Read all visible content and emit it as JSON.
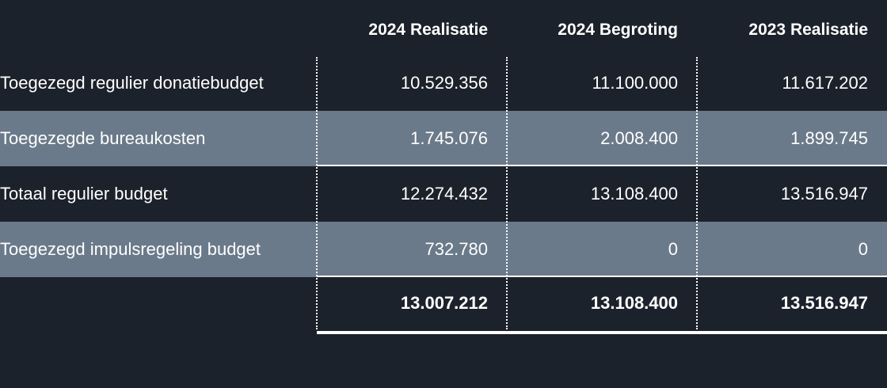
{
  "columns": [
    "2024 Realisatie",
    "2024 Begroting",
    "2023 Realisatie"
  ],
  "rows": [
    {
      "label": "Toegezegd regulier donatiebudget",
      "values": [
        "10.529.356",
        "11.100.000",
        "11.617.202"
      ]
    },
    {
      "label": "Toegezegde bureaukosten",
      "values": [
        "1.745.076",
        "2.008.400",
        "1.899.745"
      ]
    },
    {
      "label": "Totaal regulier budget",
      "values": [
        "12.274.432",
        "13.108.400",
        "13.516.947"
      ]
    },
    {
      "label": "Toegezegd impulsregeling budget",
      "values": [
        "732.780",
        "0",
        "0"
      ]
    }
  ],
  "total": {
    "values": [
      "13.007.212",
      "13.108.400",
      "13.516.947"
    ]
  }
}
